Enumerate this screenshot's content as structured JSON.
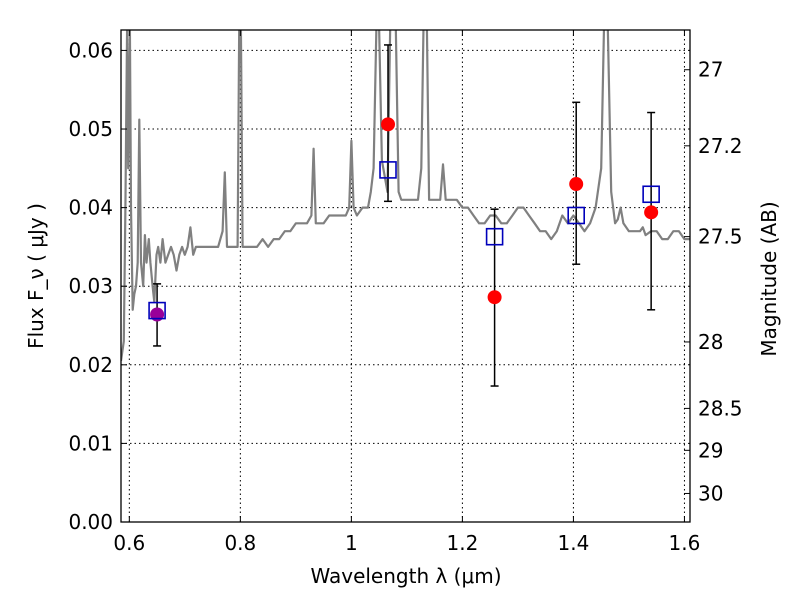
{
  "chart_data": {
    "type": "scatter",
    "xlabel": "Wavelength  λ (μm)",
    "ylabel_left": "Flux  F_ν  ( μJy )",
    "ylabel_right": "Magnitude (AB)",
    "xlim": [
      0.585,
      1.61
    ],
    "ylim": [
      0.0,
      0.0626
    ],
    "grid": true,
    "x_ticks": [
      {
        "value": 0.6,
        "label": "0.6"
      },
      {
        "value": 0.8,
        "label": "0.8"
      },
      {
        "value": 1.0,
        "label": "1"
      },
      {
        "value": 1.2,
        "label": "1.2"
      },
      {
        "value": 1.4,
        "label": "1.4"
      },
      {
        "value": 1.6,
        "label": "1.6"
      }
    ],
    "y_ticks": [
      {
        "value": 0.0,
        "label": "0.00"
      },
      {
        "value": 0.01,
        "label": "0.01"
      },
      {
        "value": 0.02,
        "label": "0.02"
      },
      {
        "value": 0.03,
        "label": "0.03"
      },
      {
        "value": 0.04,
        "label": "0.04"
      },
      {
        "value": 0.05,
        "label": "0.05"
      },
      {
        "value": 0.06,
        "label": "0.06"
      }
    ],
    "right_ticks": [
      {
        "mag": 27.0,
        "label": "27"
      },
      {
        "mag": 27.2,
        "label": "27.2"
      },
      {
        "mag": 27.5,
        "label": "27.5"
      },
      {
        "mag": 28.0,
        "label": "28"
      },
      {
        "mag": 28.5,
        "label": "28.5"
      },
      {
        "mag": 29.0,
        "label": "29"
      },
      {
        "mag": 30.0,
        "label": "30"
      }
    ],
    "spectrum": {
      "color": "#808080",
      "points": [
        [
          0.585,
          0.0205
        ],
        [
          0.59,
          0.023
        ],
        [
          0.593,
          0.04
        ],
        [
          0.596,
          0.063
        ],
        [
          0.598,
          0.045
        ],
        [
          0.601,
          0.063
        ],
        [
          0.603,
          0.04
        ],
        [
          0.606,
          0.027
        ],
        [
          0.609,
          0.029
        ],
        [
          0.612,
          0.03
        ],
        [
          0.615,
          0.033
        ],
        [
          0.618,
          0.0512
        ],
        [
          0.621,
          0.033
        ],
        [
          0.625,
          0.03
        ],
        [
          0.628,
          0.0365
        ],
        [
          0.631,
          0.033
        ],
        [
          0.635,
          0.036
        ],
        [
          0.638,
          0.033
        ],
        [
          0.642,
          0.03
        ],
        [
          0.645,
          0.028
        ],
        [
          0.649,
          0.034
        ],
        [
          0.652,
          0.035
        ],
        [
          0.656,
          0.033
        ],
        [
          0.66,
          0.036
        ],
        [
          0.665,
          0.033
        ],
        [
          0.67,
          0.034
        ],
        [
          0.675,
          0.035
        ],
        [
          0.68,
          0.034
        ],
        [
          0.685,
          0.032
        ],
        [
          0.69,
          0.034
        ],
        [
          0.695,
          0.035
        ],
        [
          0.7,
          0.034
        ],
        [
          0.705,
          0.035
        ],
        [
          0.71,
          0.0375
        ],
        [
          0.715,
          0.034
        ],
        [
          0.72,
          0.035
        ],
        [
          0.73,
          0.035
        ],
        [
          0.74,
          0.035
        ],
        [
          0.75,
          0.035
        ],
        [
          0.76,
          0.035
        ],
        [
          0.768,
          0.037
        ],
        [
          0.772,
          0.0445
        ],
        [
          0.776,
          0.035
        ],
        [
          0.78,
          0.035
        ],
        [
          0.785,
          0.035
        ],
        [
          0.79,
          0.035
        ],
        [
          0.795,
          0.035
        ],
        [
          0.798,
          0.063
        ],
        [
          0.801,
          0.063
        ],
        [
          0.804,
          0.035
        ],
        [
          0.81,
          0.035
        ],
        [
          0.82,
          0.035
        ],
        [
          0.83,
          0.035
        ],
        [
          0.84,
          0.036
        ],
        [
          0.85,
          0.035
        ],
        [
          0.86,
          0.036
        ],
        [
          0.87,
          0.036
        ],
        [
          0.88,
          0.037
        ],
        [
          0.89,
          0.037
        ],
        [
          0.9,
          0.038
        ],
        [
          0.91,
          0.038
        ],
        [
          0.92,
          0.038
        ],
        [
          0.928,
          0.039
        ],
        [
          0.932,
          0.0475
        ],
        [
          0.936,
          0.038
        ],
        [
          0.94,
          0.038
        ],
        [
          0.95,
          0.038
        ],
        [
          0.96,
          0.039
        ],
        [
          0.97,
          0.039
        ],
        [
          0.98,
          0.039
        ],
        [
          0.99,
          0.039
        ],
        [
          0.996,
          0.04
        ],
        [
          1.0,
          0.0485
        ],
        [
          1.004,
          0.04
        ],
        [
          1.01,
          0.039
        ],
        [
          1.02,
          0.04
        ],
        [
          1.03,
          0.04
        ],
        [
          1.035,
          0.042
        ],
        [
          1.04,
          0.045
        ],
        [
          1.045,
          0.063
        ],
        [
          1.05,
          0.063
        ],
        [
          1.055,
          0.046
        ],
        [
          1.06,
          0.044
        ],
        [
          1.065,
          0.042
        ],
        [
          1.07,
          0.063
        ],
        [
          1.08,
          0.063
        ],
        [
          1.085,
          0.042
        ],
        [
          1.09,
          0.041
        ],
        [
          1.1,
          0.041
        ],
        [
          1.11,
          0.041
        ],
        [
          1.12,
          0.041
        ],
        [
          1.126,
          0.045
        ],
        [
          1.13,
          0.063
        ],
        [
          1.136,
          0.063
        ],
        [
          1.14,
          0.041
        ],
        [
          1.15,
          0.041
        ],
        [
          1.16,
          0.041
        ],
        [
          1.165,
          0.0455
        ],
        [
          1.17,
          0.041
        ],
        [
          1.18,
          0.041
        ],
        [
          1.19,
          0.041
        ],
        [
          1.2,
          0.04
        ],
        [
          1.21,
          0.04
        ],
        [
          1.22,
          0.039
        ],
        [
          1.23,
          0.038
        ],
        [
          1.24,
          0.038
        ],
        [
          1.25,
          0.039
        ],
        [
          1.26,
          0.039
        ],
        [
          1.27,
          0.038
        ],
        [
          1.28,
          0.038
        ],
        [
          1.29,
          0.039
        ],
        [
          1.3,
          0.04
        ],
        [
          1.31,
          0.04
        ],
        [
          1.32,
          0.039
        ],
        [
          1.33,
          0.038
        ],
        [
          1.34,
          0.037
        ],
        [
          1.35,
          0.037
        ],
        [
          1.36,
          0.036
        ],
        [
          1.37,
          0.037
        ],
        [
          1.38,
          0.039
        ],
        [
          1.39,
          0.038
        ],
        [
          1.4,
          0.039
        ],
        [
          1.41,
          0.038
        ],
        [
          1.42,
          0.037
        ],
        [
          1.43,
          0.038
        ],
        [
          1.44,
          0.04
        ],
        [
          1.45,
          0.045
        ],
        [
          1.455,
          0.063
        ],
        [
          1.462,
          0.063
        ],
        [
          1.468,
          0.042
        ],
        [
          1.475,
          0.038
        ],
        [
          1.48,
          0.0385
        ],
        [
          1.485,
          0.04
        ],
        [
          1.49,
          0.038
        ],
        [
          1.5,
          0.037
        ],
        [
          1.51,
          0.037
        ],
        [
          1.52,
          0.037
        ],
        [
          1.525,
          0.0375
        ],
        [
          1.53,
          0.0365
        ],
        [
          1.54,
          0.037
        ],
        [
          1.55,
          0.037
        ],
        [
          1.56,
          0.036
        ],
        [
          1.57,
          0.036
        ],
        [
          1.58,
          0.037
        ],
        [
          1.59,
          0.037
        ],
        [
          1.6,
          0.036
        ],
        [
          1.61,
          0.036
        ]
      ]
    },
    "model_photometry": {
      "color": "#0000bb",
      "marker": "open-square",
      "points": [
        {
          "x": 0.65,
          "y": 0.0269
        },
        {
          "x": 1.066,
          "y": 0.0448
        },
        {
          "x": 1.258,
          "y": 0.0363
        },
        {
          "x": 1.405,
          "y": 0.039
        },
        {
          "x": 1.54,
          "y": 0.0417
        }
      ]
    },
    "observed": {
      "color": "#ff0000",
      "marker": "filled-circle",
      "points": [
        {
          "x": 1.066,
          "y": 0.0506,
          "err_low": 0.0408,
          "err_high": 0.0607
        },
        {
          "x": 1.258,
          "y": 0.0286,
          "err_low": 0.0173,
          "err_high": 0.0398
        },
        {
          "x": 1.405,
          "y": 0.043,
          "err_low": 0.0328,
          "err_high": 0.0534
        },
        {
          "x": 1.54,
          "y": 0.0394,
          "err_low": 0.027,
          "err_high": 0.0521
        }
      ]
    },
    "observed_optical": {
      "color": "#990099",
      "marker": "filled-circle",
      "points": [
        {
          "x": 0.65,
          "y": 0.0264,
          "err_low": 0.0224,
          "err_high": 0.0303
        }
      ]
    }
  }
}
